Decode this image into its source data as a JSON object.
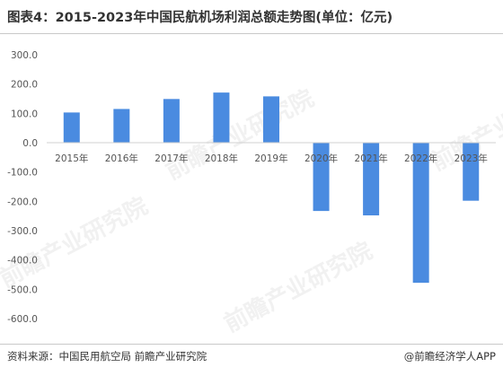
{
  "title": "图表4：2015-2023年中国民航机场利润总额走势图(单位：亿元)",
  "source": "资料来源：中国民用航空局 前瞻产业研究院",
  "credit": "@前瞻经济学人APP",
  "watermark": "前瞻产业研究院",
  "colors": {
    "bar": "#4A8BE0"
  },
  "chart_data": {
    "type": "bar",
    "categories": [
      "2015年",
      "2016年",
      "2017年",
      "2018年",
      "2019年",
      "2020年",
      "2021年",
      "2022年",
      "2023年"
    ],
    "values": [
      103,
      115,
      149,
      171,
      158,
      -233,
      -248,
      -478,
      -198
    ],
    "ylim": [
      -600,
      300
    ],
    "yticks": [
      "300.0",
      "200.0",
      "100.0",
      "0.0",
      "-100.0",
      "-200.0",
      "-300.0",
      "-400.0",
      "-500.0",
      "-600.0"
    ],
    "ytick_values": [
      300,
      200,
      100,
      0,
      -100,
      -200,
      -300,
      -400,
      -500,
      -600
    ],
    "grid": false,
    "legend": "none"
  }
}
